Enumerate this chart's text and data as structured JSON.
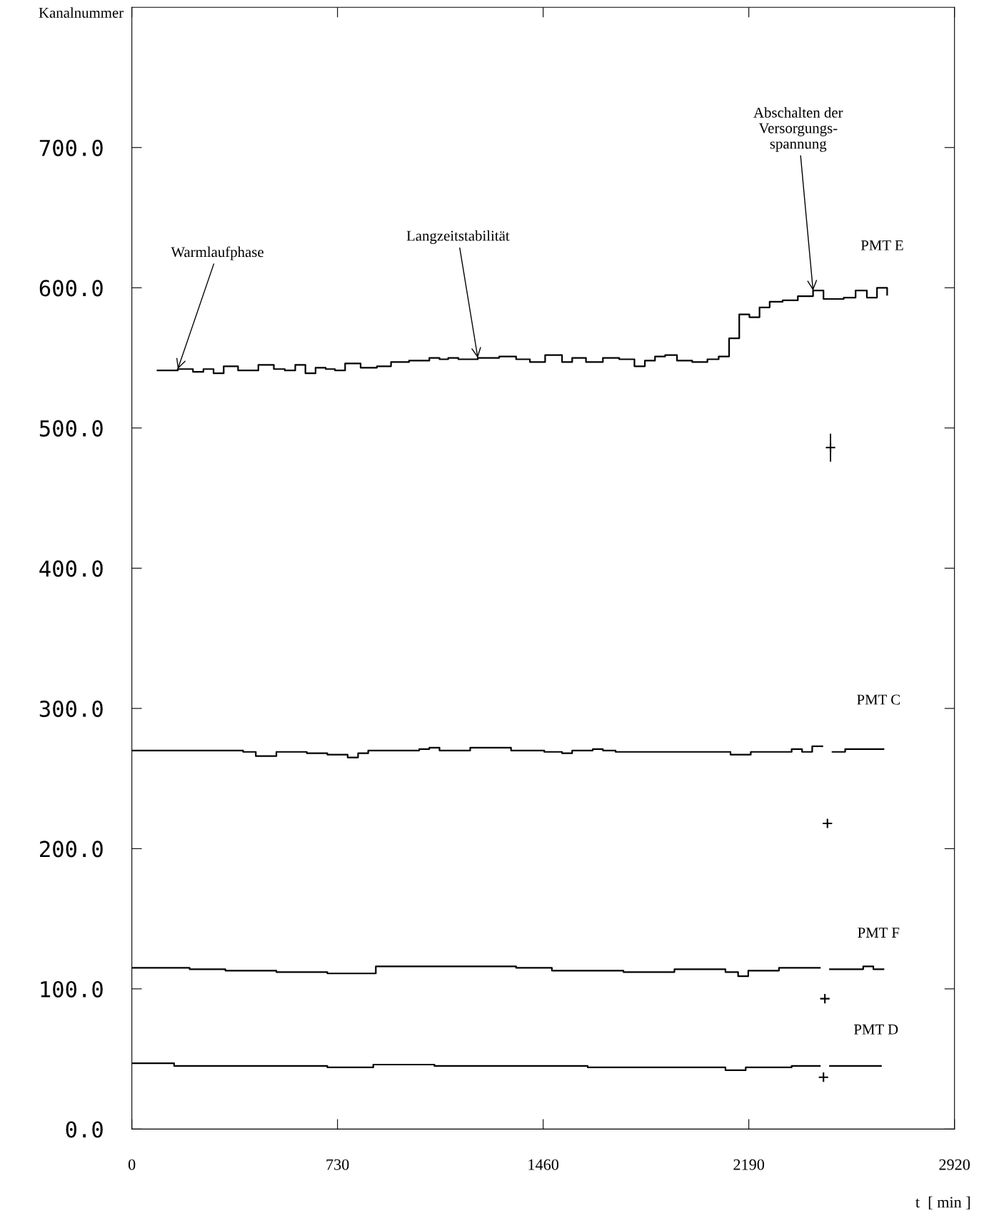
{
  "chart_data": {
    "type": "step",
    "ylabel": "Kanalnummer",
    "xlabel": "t  [ min ]",
    "xlim": [
      0,
      2920
    ],
    "xticks": [
      0,
      730,
      1460,
      2190,
      2920
    ],
    "ylim": [
      0,
      800
    ],
    "yticks": [
      {
        "value": 0,
        "label": "0.0"
      },
      {
        "value": 100,
        "label": "100.0"
      },
      {
        "value": 200,
        "label": "200.0"
      },
      {
        "value": 300,
        "label": "300.0"
      },
      {
        "value": 400,
        "label": "400.0"
      },
      {
        "value": 500,
        "label": "500.0"
      },
      {
        "value": 600,
        "label": "600.0"
      },
      {
        "value": 700,
        "label": "700.0"
      }
    ],
    "grid": false,
    "marker": "none",
    "line_style": "solid",
    "annotations": [
      {
        "text": "Warmlaufphase",
        "x": 163,
        "y": 542
      },
      {
        "text": "Langzeitstabilität",
        "x": 1228,
        "y": 550
      },
      {
        "text": "Abschalten der\nVersorgungs-\nspannung",
        "x": 2418,
        "y": 598
      }
    ],
    "series": [
      {
        "name": "PMT E",
        "color": "#000000",
        "x": [
          91,
          163,
          217,
          254,
          290,
          326,
          377,
          449,
          504,
          543,
          580,
          616,
          652,
          688,
          721,
          757,
          812,
          870,
          920,
          984,
          1056,
          1092,
          1123,
          1159,
          1228,
          1304,
          1364,
          1413,
          1467,
          1527,
          1563,
          1612,
          1672,
          1730,
          1784,
          1821,
          1857,
          1893,
          1935,
          1989,
          2043,
          2083,
          2120,
          2156,
          2192,
          2228,
          2264,
          2310,
          2364,
          2418,
          2455,
          2527,
          2569,
          2609,
          2645,
          2681
        ],
        "values": [
          541,
          542,
          540,
          542,
          539,
          544,
          541,
          545,
          542,
          541,
          545,
          539,
          543,
          542,
          541,
          546,
          543,
          544,
          547,
          548,
          550,
          549,
          550,
          549,
          550,
          551,
          549,
          547,
          552,
          547,
          550,
          547,
          550,
          549,
          544,
          548,
          551,
          552,
          548,
          547,
          549,
          551,
          564,
          581,
          579,
          586,
          590,
          591,
          594,
          598,
          592,
          593,
          598,
          593,
          600,
          595
        ]
      },
      {
        "name": "PMT C",
        "color": "#000000",
        "x": [
          0,
          395,
          440,
          513,
          621,
          694,
          766,
          803,
          839,
          1020,
          1056,
          1092,
          1201,
          1346,
          1464,
          1527,
          1563,
          1636,
          1672,
          1717,
          2125,
          2197,
          2342,
          2379,
          2415,
          2451,
          2487,
          2532,
          2668
        ],
        "values": [
          270,
          269,
          266,
          269,
          268,
          267,
          265,
          268,
          270,
          271,
          272,
          270,
          272,
          270,
          269,
          268,
          270,
          271,
          270,
          269,
          267,
          269,
          271,
          269,
          273,
          null,
          269,
          271,
          271
        ]
      },
      {
        "name": "PMT F",
        "color": "#000000",
        "x": [
          0,
          205,
          332,
          513,
          694,
          866,
          1111,
          1364,
          1491,
          1745,
          1926,
          2107,
          2152,
          2188,
          2297,
          2442,
          2478,
          2596,
          2632,
          2668
        ],
        "values": [
          115,
          114,
          113,
          112,
          111,
          116,
          116,
          115,
          113,
          112,
          114,
          112,
          109,
          113,
          115,
          null,
          114,
          116,
          114,
          114
        ]
      },
      {
        "name": "PMT D",
        "color": "#000000",
        "x": [
          0,
          150,
          694,
          857,
          1074,
          1618,
          2107,
          2179,
          2342,
          2442,
          2478,
          2659
        ],
        "values": [
          47,
          45,
          44,
          46,
          45,
          44,
          42,
          44,
          45,
          null,
          45,
          45
        ]
      },
      {
        "type": "scatter",
        "color": "#000000",
        "marker": "cross",
        "x": [
          2480,
          2469,
          2460,
          2455
        ],
        "values": [
          486,
          218,
          93,
          37
        ],
        "errors": [
          10,
          null,
          null,
          null
        ]
      }
    ]
  }
}
